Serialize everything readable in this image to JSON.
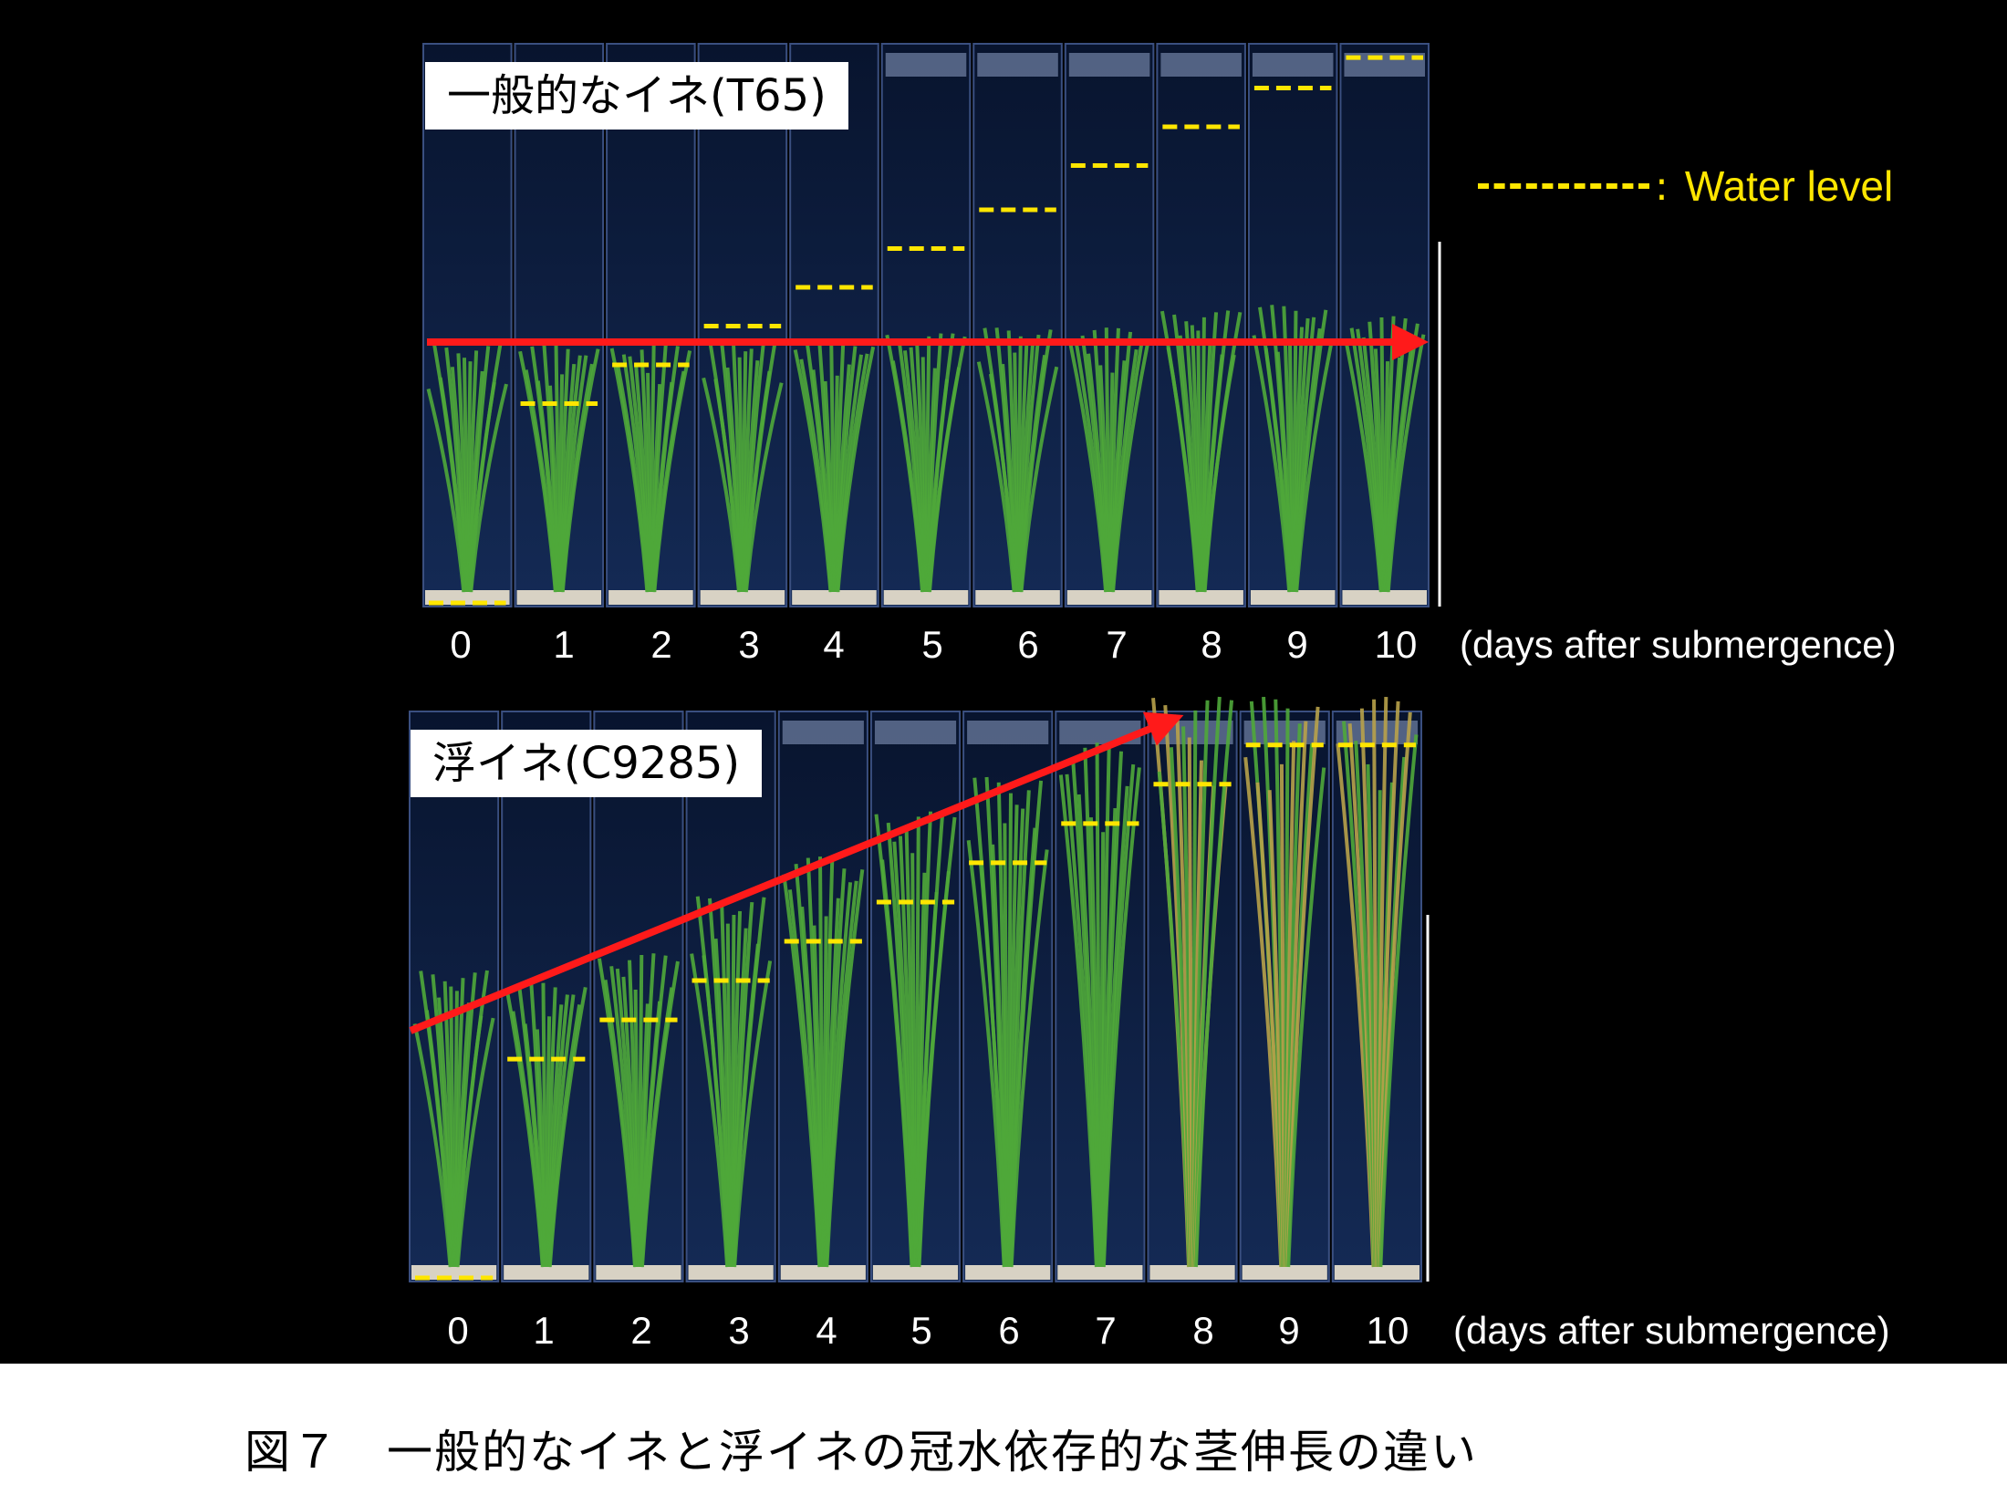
{
  "panels": [
    {
      "label": "一般的なイネ(T65)",
      "days": [
        "0",
        "1",
        "2",
        "3",
        "4",
        "5",
        "6",
        "7",
        "8",
        "9",
        "10"
      ],
      "axis_note": "(days after submergence)",
      "water_level_by_day": [
        0.0,
        0.36,
        0.43,
        0.5,
        0.57,
        0.64,
        0.71,
        0.79,
        0.86,
        0.93,
        0.985
      ],
      "plant_height_by_day": [
        0.44,
        0.44,
        0.44,
        0.45,
        0.45,
        0.46,
        0.47,
        0.47,
        0.5,
        0.51,
        0.49
      ]
    },
    {
      "label": "浮イネ(C9285)",
      "days": [
        "0",
        "1",
        "2",
        "3",
        "4",
        "5",
        "6",
        "7",
        "8",
        "9",
        "10"
      ],
      "axis_note": "(days after submergence)",
      "water_level_by_day": [
        0.0,
        0.39,
        0.46,
        0.53,
        0.6,
        0.67,
        0.74,
        0.81,
        0.88,
        0.95,
        0.95
      ],
      "plant_height_by_day": [
        0.52,
        0.5,
        0.55,
        0.65,
        0.72,
        0.8,
        0.86,
        0.92,
        1.0,
        1.0,
        1.0
      ]
    }
  ],
  "legend": {
    "label": "Water level",
    "separator": ":"
  },
  "caption": "図７　一般的なイネと浮イネの冠水依存的な茎伸長の違い",
  "colors": {
    "water_level": "#ffe600",
    "arrow": "#ff1a1a",
    "leaf": "#4fa83a",
    "leaf_dry": "#b8a24a",
    "tank": "#0b1a3a"
  }
}
